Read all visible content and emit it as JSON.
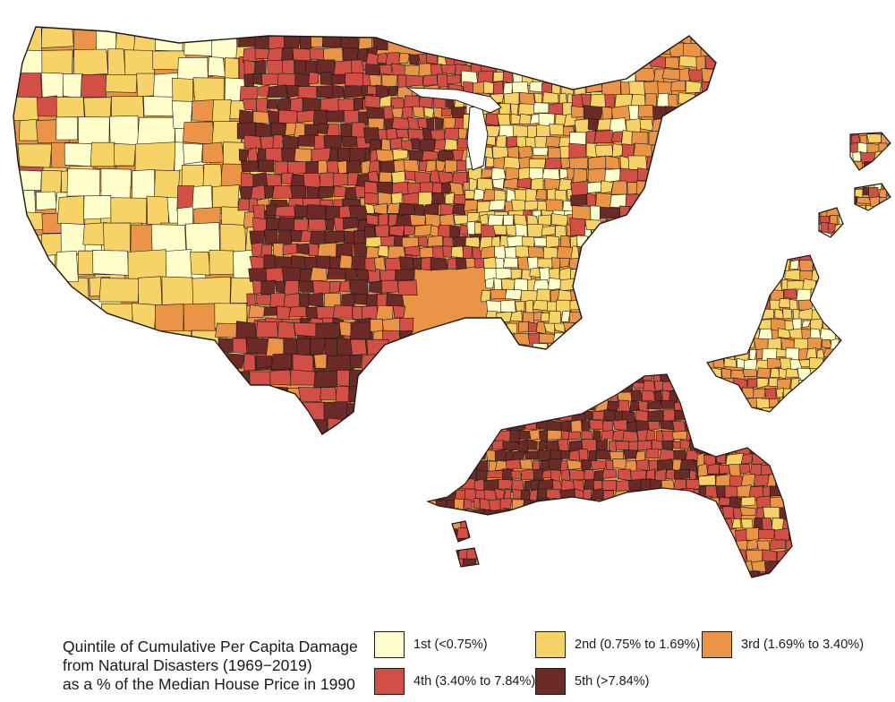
{
  "legend": {
    "title_lines": [
      "Quintile of Cumulative Per Capita Damage",
      "from Natural Disasters (1969−2019)",
      "as a % of the Median House Price in 1990"
    ],
    "items": [
      {
        "label": "1st (<0.75%)",
        "color": "#ffffcc"
      },
      {
        "label": "2nd (0.75% to 1.69%)",
        "color": "#f6d267"
      },
      {
        "label": "3rd (1.69% to 3.40%)",
        "color": "#ea9448"
      },
      {
        "label": "4th (3.40% to 7.84%)",
        "color": "#d24f45"
      },
      {
        "label": "5th (>7.84%)",
        "color": "#6b2a26"
      }
    ]
  },
  "map": {
    "border_color": "#1a1a1a",
    "region_quintiles": [
      {
        "region": "pacific-northwest",
        "quintile": 2
      },
      {
        "region": "california",
        "quintile": 1
      },
      {
        "region": "great-basin",
        "quintile": 1
      },
      {
        "region": "rocky-mountains",
        "quintile": 2
      },
      {
        "region": "southwest",
        "quintile": 1
      },
      {
        "region": "northern-plains",
        "quintile": 5
      },
      {
        "region": "southern-plains",
        "quintile": 5
      },
      {
        "region": "texas-gulf",
        "quintile": 5
      },
      {
        "region": "midwest",
        "quintile": 4
      },
      {
        "region": "great-lakes",
        "quintile": 2
      },
      {
        "region": "appalachia",
        "quintile": 2
      },
      {
        "region": "northeast",
        "quintile": 3
      },
      {
        "region": "mid-atlantic-inset",
        "quintile": 2
      },
      {
        "region": "gulf-coast-inset",
        "quintile": 5
      },
      {
        "region": "florida-peninsula",
        "quintile": 4
      }
    ]
  }
}
